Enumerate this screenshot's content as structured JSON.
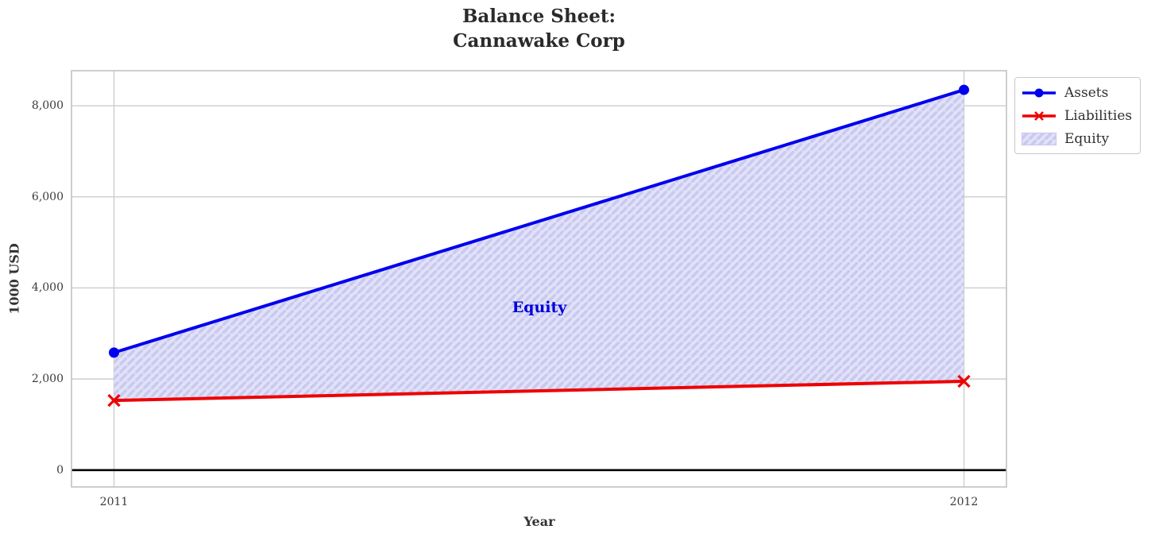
{
  "title": {
    "line1": "Balance Sheet:",
    "line2": "Cannawake Corp"
  },
  "axes": {
    "xlabel": "Year",
    "ylabel": "1000 USD"
  },
  "legend": {
    "items": [
      {
        "label": "Assets"
      },
      {
        "label": "Liabilities"
      },
      {
        "label": "Equity"
      }
    ]
  },
  "annotation": {
    "label": "Equity",
    "color": "#0000dd"
  },
  "chart_data": {
    "type": "line",
    "title": "Balance Sheet:\nCannawake Corp",
    "xlabel": "Year",
    "ylabel": "1000 USD",
    "x": [
      "2011",
      "2012"
    ],
    "series": [
      {
        "name": "Assets",
        "values": [
          2580,
          8350
        ],
        "color": "#0000ee",
        "marker": "circle"
      },
      {
        "name": "Liabilities",
        "values": [
          1530,
          1950
        ],
        "color": "#ee0000",
        "marker": "x"
      }
    ],
    "area_between": {
      "name": "Equity",
      "upper": "Assets",
      "lower": "Liabilities",
      "hatch": "//",
      "fill": "#e1e1f8",
      "hatch_color": "#c9c9f0"
    },
    "xtick_labels": [
      "2011",
      "2012"
    ],
    "yticks": [
      0,
      2000,
      4000,
      6000,
      8000
    ],
    "ytick_labels": [
      "0",
      "2,000",
      "4,000",
      "6,000",
      "8,000"
    ],
    "ylim": [
      -370,
      8770
    ],
    "grid": true,
    "zero_line": true,
    "legend_position": "upper right, outside axes"
  }
}
